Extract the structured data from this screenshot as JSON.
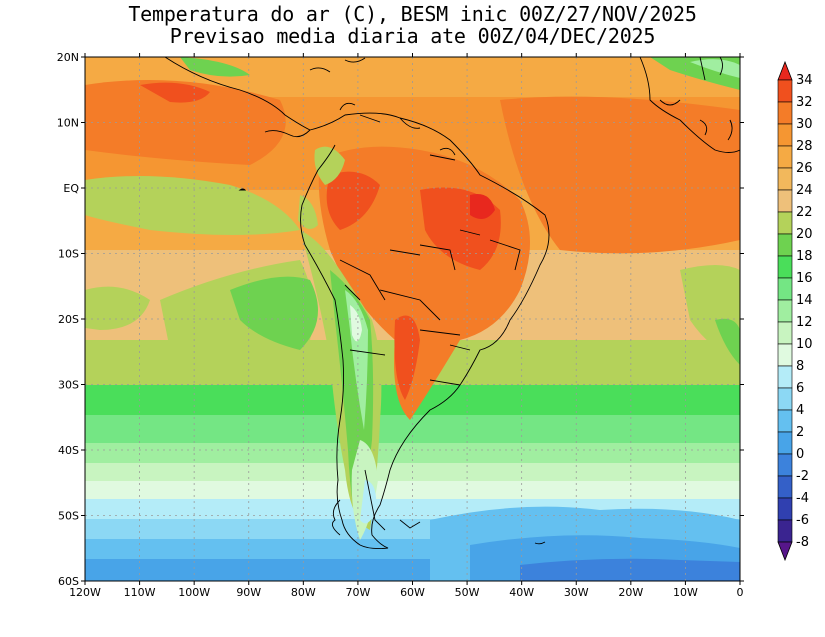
{
  "title": {
    "line1": "Temperatura do ar (C), BESM inic 00Z/27/NOV/2025",
    "line2": "Previsao media diaria ate 00Z/04/DEC/2025"
  },
  "map": {
    "type": "filled-contour-map",
    "variable": "Temperatura do ar (C)",
    "lon_range": [
      -120,
      0
    ],
    "lat_range": [
      -60,
      20
    ],
    "lat_labels": [
      "20N",
      "10N",
      "EQ",
      "10S",
      "20S",
      "30S",
      "40S",
      "50S",
      "60S"
    ],
    "lon_labels": [
      "120W",
      "110W",
      "100W",
      "90W",
      "80W",
      "70W",
      "60W",
      "50W",
      "40W",
      "30W",
      "20W",
      "10W",
      "0"
    ],
    "grid": true
  },
  "colorbar": {
    "labels": [
      "34",
      "32",
      "30",
      "28",
      "26",
      "24",
      "22",
      "20",
      "18",
      "16",
      "14",
      "12",
      "10",
      "8",
      "6",
      "4",
      "2",
      "0",
      "-2",
      "-4",
      "-6",
      "-8"
    ],
    "colors": [
      "#e8281e",
      "#f0501e",
      "#f47c28",
      "#f59632",
      "#f5aa44",
      "#f2b85c",
      "#eec07a",
      "#b4d25a",
      "#6ed250",
      "#4ade5a",
      "#74e684",
      "#a0eea0",
      "#c8f4c0",
      "#e0fae0",
      "#b4ecf8",
      "#8cd8f4",
      "#64c0f0",
      "#48a4e8",
      "#3c82dc",
      "#3460c8",
      "#3040b0",
      "#3a2490",
      "#56168a"
    ]
  }
}
